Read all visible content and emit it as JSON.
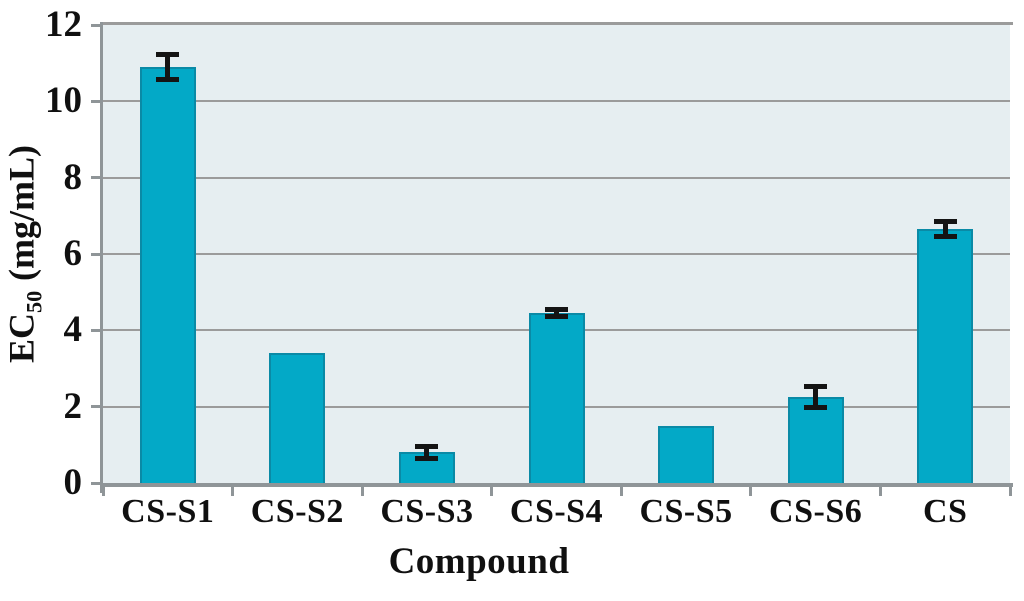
{
  "chart_data": {
    "type": "bar",
    "title": "",
    "xlabel": "Compound",
    "ylabel": "EC50 (mg/mL)",
    "ylabel_parts": {
      "prefix": "EC",
      "sub": "50",
      "suffix": "(mg/mL)"
    },
    "categories": [
      "CS-S1",
      "CS-S2",
      "CS-S3",
      "CS-S4",
      "CS-S5",
      "CS-S6",
      "CS"
    ],
    "values": [
      10.9,
      3.4,
      0.8,
      4.45,
      1.5,
      2.25,
      6.65
    ],
    "errors": [
      0.32,
      null,
      0.15,
      0.09,
      null,
      0.27,
      0.2
    ],
    "ylim": [
      0,
      12
    ],
    "yticks": [
      "0",
      "2",
      "4",
      "6",
      "8",
      "10",
      "12"
    ],
    "grid": "horizontal",
    "legend": null,
    "colors": {
      "bar_fill": "#03a9c7",
      "bar_border": "#0a8aa6",
      "error_bar": "#141414",
      "plot_background": "#e6eef1",
      "grid_line": "#9b9b9b",
      "axis_line": "#8f9598",
      "text": "#101010",
      "figure_background": "#ffffff"
    }
  }
}
